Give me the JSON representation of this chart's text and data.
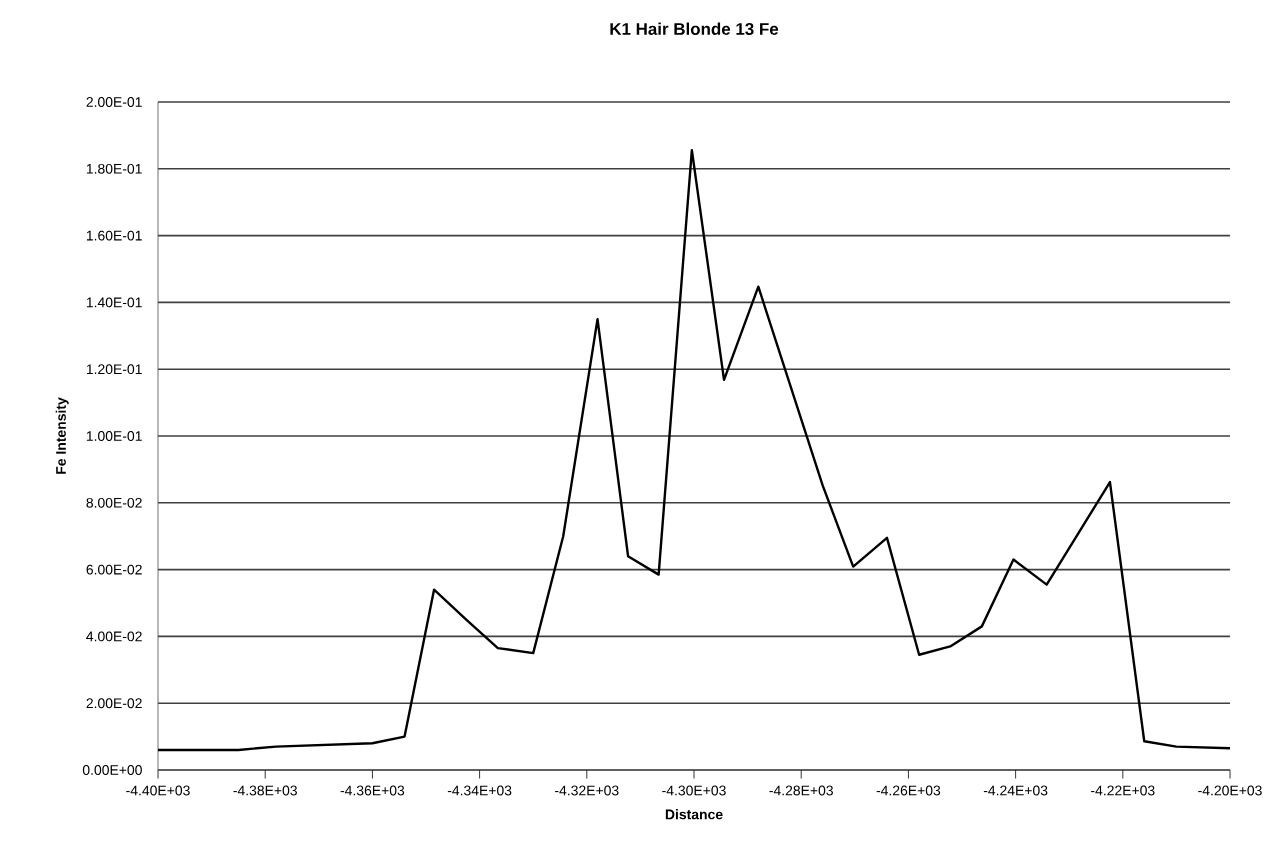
{
  "chart_data": {
    "type": "line",
    "title": "K1 Hair Blonde 13 Fe",
    "xlabel": "Distance",
    "ylabel": "Fe Intensity",
    "x": [
      -4400,
      -4385,
      -4378,
      -4360,
      -4354,
      -4348.5,
      -4342.5,
      -4336.6,
      -4330,
      -4324.4,
      -4318,
      -4312.3,
      -4306.6,
      -4300.4,
      -4294.4,
      -4288,
      -4276,
      -4270.3,
      -4264,
      -4258,
      -4252.2,
      -4246.3,
      -4240.4,
      -4234.2,
      -4222.4,
      -4216,
      -4210,
      -4200
    ],
    "series": [
      {
        "color": "#000000",
        "values": [
          0.006,
          0.006,
          0.007,
          0.008,
          0.01,
          0.054,
          0.045,
          0.0365,
          0.035,
          0.07,
          0.135,
          0.064,
          0.0585,
          0.1856,
          0.1168,
          0.1447,
          0.0852,
          0.0609,
          0.0695,
          0.0345,
          0.037,
          0.043,
          0.063,
          0.0555,
          0.0862,
          0.0086,
          0.007,
          0.0065
        ]
      }
    ],
    "xlim": [
      -4400,
      -4200
    ],
    "xticks": [
      {
        "value": -4400,
        "label": "-4.40E+03"
      },
      {
        "value": -4380,
        "label": "-4.38E+03"
      },
      {
        "value": -4360,
        "label": "-4.36E+03"
      },
      {
        "value": -4340,
        "label": "-4.34E+03"
      },
      {
        "value": -4320,
        "label": "-4.32E+03"
      },
      {
        "value": -4300,
        "label": "-4.30E+03"
      },
      {
        "value": -4280,
        "label": "-4.28E+03"
      },
      {
        "value": -4260,
        "label": "-4.26E+03"
      },
      {
        "value": -4240,
        "label": "-4.24E+03"
      },
      {
        "value": -4220,
        "label": "-4.22E+03"
      },
      {
        "value": -4200,
        "label": "-4.20E+03"
      }
    ],
    "ylim": [
      0,
      0.2
    ],
    "yticks": [
      {
        "value": 0,
        "label": "0.00E+00"
      },
      {
        "value": 0.02,
        "label": "2.00E-02"
      },
      {
        "value": 0.04,
        "label": "4.00E-02"
      },
      {
        "value": 0.06,
        "label": "6.00E-02"
      },
      {
        "value": 0.08,
        "label": "8.00E-02"
      },
      {
        "value": 0.1,
        "label": "1.00E-01"
      },
      {
        "value": 0.12,
        "label": "1.20E-01"
      },
      {
        "value": 0.14,
        "label": "1.40E-01"
      },
      {
        "value": 0.16,
        "label": "1.60E-01"
      },
      {
        "value": 0.18,
        "label": "1.80E-01"
      },
      {
        "value": 0.2,
        "label": "2.00E-01"
      }
    ],
    "grid": "y",
    "marker": "none",
    "line_style": "solid"
  }
}
